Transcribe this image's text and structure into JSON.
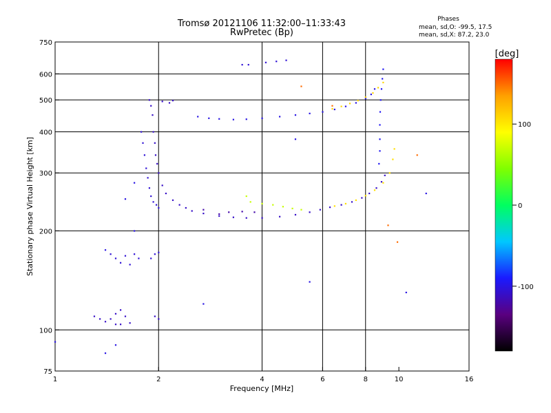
{
  "chart_data": {
    "type": "scatter",
    "title": "Tromsø 20121106 11:32:00–11:33:43",
    "subtitle": "RwPretec (Bp)",
    "stats": {
      "heading": "Phases",
      "line1": "mean, sd,O:  -99.5, 17.5",
      "line2": "mean, sd,X:   87.2, 23.0"
    },
    "xlabel": "Frequency [MHz]",
    "ylabel": "Stationary phase Virtual Height [km]",
    "x_scale": "log",
    "y_scale": "log",
    "xlim": [
      1,
      16
    ],
    "ylim": [
      75,
      750
    ],
    "xticks": [
      1,
      2,
      4,
      6,
      8,
      10,
      16
    ],
    "yticks": [
      75,
      100,
      200,
      300,
      400,
      500,
      600,
      750
    ],
    "grid_x": [
      2,
      4,
      6,
      8
    ],
    "grid_y": [
      100,
      200,
      300,
      400,
      500,
      600
    ],
    "colorbar": {
      "label": "[deg]",
      "range": [
        -180,
        180
      ],
      "ticks": [
        100,
        0,
        -100
      ],
      "colors": [
        "#000000",
        "#5a0080",
        "#1a1aff",
        "#00c8ff",
        "#00ff60",
        "#80ff00",
        "#ffff00",
        "#ffa000",
        "#ff0000"
      ]
    },
    "series": [
      {
        "phase": -110,
        "points": [
          [
            1.88,
            500
          ],
          [
            1.9,
            480
          ],
          [
            1.92,
            450
          ],
          [
            1.93,
            400
          ],
          [
            1.95,
            370
          ],
          [
            1.96,
            340
          ],
          [
            1.98,
            320
          ],
          [
            2.0,
            300
          ],
          [
            2.05,
            275
          ],
          [
            2.1,
            260
          ],
          [
            2.2,
            248
          ],
          [
            2.3,
            240
          ],
          [
            2.4,
            235
          ],
          [
            2.5,
            230
          ],
          [
            2.7,
            226
          ],
          [
            3.0,
            222
          ],
          [
            3.3,
            220
          ],
          [
            3.6,
            219
          ],
          [
            4.0,
            219
          ],
          [
            4.5,
            221
          ],
          [
            5.0,
            224
          ],
          [
            5.5,
            228
          ],
          [
            5.9,
            232
          ],
          [
            6.3,
            236
          ],
          [
            6.8,
            240
          ],
          [
            7.3,
            245
          ],
          [
            7.8,
            252
          ],
          [
            8.2,
            260
          ],
          [
            8.6,
            270
          ],
          [
            8.9,
            282
          ],
          [
            9.1,
            295
          ]
        ]
      },
      {
        "phase": -105,
        "points": [
          [
            1.78,
            400
          ],
          [
            1.8,
            370
          ],
          [
            1.82,
            340
          ],
          [
            1.84,
            310
          ],
          [
            1.86,
            290
          ],
          [
            1.88,
            270
          ],
          [
            1.9,
            255
          ],
          [
            1.93,
            245
          ],
          [
            1.97,
            240
          ],
          [
            2.0,
            235
          ]
        ]
      },
      {
        "phase": -95,
        "points": [
          [
            8.75,
            320
          ],
          [
            8.8,
            350
          ],
          [
            8.8,
            380
          ],
          [
            8.8,
            420
          ],
          [
            8.82,
            460
          ],
          [
            8.85,
            500
          ],
          [
            8.9,
            540
          ],
          [
            8.95,
            580
          ],
          [
            9.0,
            620
          ]
        ]
      },
      {
        "phase": -100,
        "points": [
          [
            2.6,
            445
          ],
          [
            2.8,
            440
          ],
          [
            3.0,
            438
          ],
          [
            3.3,
            436
          ],
          [
            3.6,
            437
          ],
          [
            4.0,
            440
          ],
          [
            4.5,
            445
          ],
          [
            5.0,
            450
          ],
          [
            5.5,
            455
          ],
          [
            6.0,
            460
          ],
          [
            6.5,
            468
          ],
          [
            7.0,
            478
          ],
          [
            7.5,
            490
          ],
          [
            8.0,
            505
          ],
          [
            8.3,
            520
          ],
          [
            8.5,
            540
          ]
        ]
      },
      {
        "phase": 110,
        "points": [
          [
            6.4,
            470
          ],
          [
            6.8,
            478
          ],
          [
            7.2,
            488
          ],
          [
            7.6,
            498
          ],
          [
            8.0,
            510
          ],
          [
            8.4,
            525
          ],
          [
            8.7,
            545
          ],
          [
            9.0,
            565
          ]
        ]
      },
      {
        "phase": 105,
        "points": [
          [
            6.5,
            238
          ],
          [
            7.0,
            242
          ],
          [
            7.5,
            248
          ],
          [
            8.0,
            256
          ],
          [
            8.5,
            266
          ],
          [
            9.0,
            280
          ],
          [
            9.4,
            300
          ],
          [
            9.6,
            330
          ],
          [
            9.7,
            355
          ]
        ]
      },
      {
        "phase": 70,
        "points": [
          [
            4.0,
            242
          ],
          [
            4.3,
            240
          ],
          [
            4.6,
            237
          ],
          [
            4.9,
            234
          ],
          [
            5.2,
            232
          ],
          [
            3.6,
            255
          ],
          [
            3.7,
            245
          ]
        ]
      },
      {
        "phase": -120,
        "points": [
          [
            3.0,
            225
          ],
          [
            3.2,
            228
          ],
          [
            3.5,
            229
          ],
          [
            3.8,
            228
          ],
          [
            2.7,
            232
          ]
        ]
      },
      {
        "phase": -105,
        "points": [
          [
            1.45,
            170
          ],
          [
            1.5,
            165
          ],
          [
            1.55,
            160
          ],
          [
            1.6,
            168
          ],
          [
            1.65,
            158
          ],
          [
            1.7,
            170
          ],
          [
            1.75,
            165
          ],
          [
            1.9,
            165
          ],
          [
            1.95,
            170
          ],
          [
            2.0,
            172
          ]
        ]
      },
      {
        "phase": -110,
        "points": [
          [
            1.3,
            110
          ],
          [
            1.35,
            108
          ],
          [
            1.4,
            106
          ],
          [
            1.45,
            108
          ],
          [
            1.5,
            112
          ],
          [
            1.55,
            115
          ],
          [
            1.6,
            110
          ],
          [
            1.65,
            105
          ],
          [
            1.5,
            104
          ],
          [
            1.55,
            104
          ],
          [
            1.95,
            110
          ],
          [
            2.0,
            108
          ]
        ]
      },
      {
        "phase": -105,
        "points": [
          [
            3.5,
            640
          ],
          [
            3.65,
            640
          ],
          [
            4.1,
            650
          ],
          [
            4.4,
            655
          ],
          [
            4.7,
            660
          ]
        ]
      },
      {
        "phase": -110,
        "points": [
          [
            2.05,
            495
          ],
          [
            2.15,
            490
          ],
          [
            2.2,
            498
          ]
        ]
      },
      {
        "phase": 150,
        "points": [
          [
            5.2,
            550
          ],
          [
            6.4,
            480
          ],
          [
            9.3,
            208
          ],
          [
            9.9,
            185
          ],
          [
            11.3,
            340
          ]
        ]
      },
      {
        "phase": -100,
        "points": [
          [
            1.4,
            175
          ],
          [
            1.6,
            250
          ],
          [
            1.7,
            280
          ],
          [
            1.7,
            200
          ],
          [
            2.7,
            120
          ],
          [
            5.0,
            380
          ],
          [
            5.5,
            140
          ],
          [
            12.0,
            260
          ],
          [
            10.5,
            130
          ],
          [
            1.5,
            90
          ],
          [
            1.4,
            85
          ],
          [
            1.0,
            92
          ]
        ]
      }
    ]
  }
}
